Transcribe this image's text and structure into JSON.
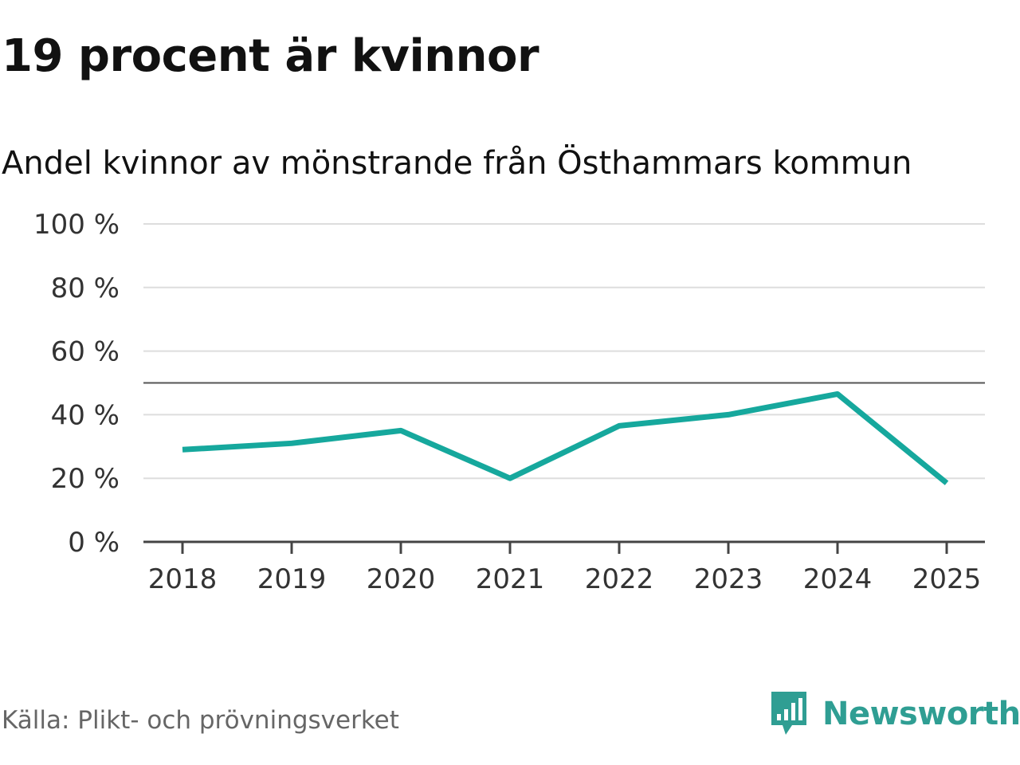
{
  "title": "19 procent är kvinnor",
  "source": "Källa: Plikt- och prövningsverket",
  "brand": {
    "name": "Newsworthy",
    "icon": "newsworthy-logo-icon",
    "color": "#2f9e93"
  },
  "colors": {
    "line": "#16a89d",
    "grid": "#dddddd",
    "axis": "#444444",
    "reference": "#555555"
  },
  "chart_data": {
    "type": "line",
    "title": "Andel kvinnor av mönstrande från Östhammars kommun",
    "x": [
      "2018",
      "2019",
      "2020",
      "2021",
      "2022",
      "2023",
      "2024",
      "2025"
    ],
    "series": [
      {
        "name": "Andel kvinnor",
        "values": [
          29,
          31,
          35,
          20,
          36.5,
          40,
          46.5,
          18.5
        ]
      }
    ],
    "ylim": [
      0,
      100
    ],
    "yticks": [
      0,
      20,
      40,
      60,
      80,
      100
    ],
    "ytick_labels": [
      "0 %",
      "20 %",
      "40 %",
      "60 %",
      "80 %",
      "100 %"
    ],
    "reference_line": 50,
    "grid": true,
    "xlabel": "",
    "ylabel": ""
  }
}
